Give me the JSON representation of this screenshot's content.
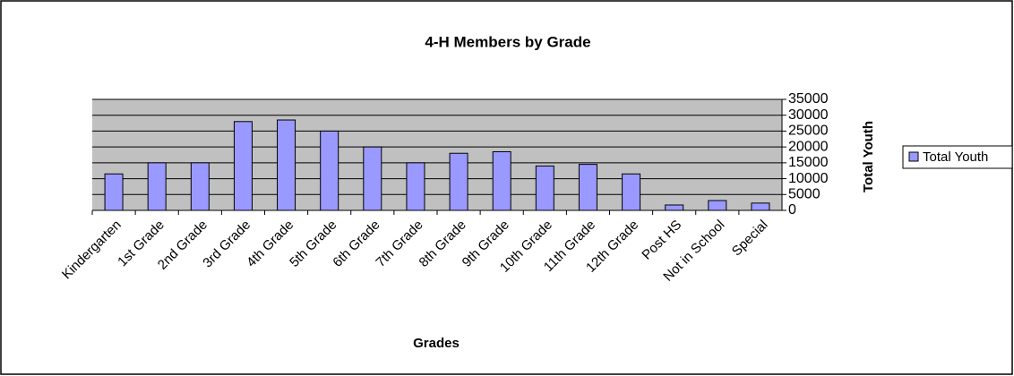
{
  "chart_data": {
    "type": "bar",
    "title": "4-H Members by Grade",
    "x_label": "Grades",
    "y_label": "Total Youth",
    "categories": [
      "Kindergarten",
      "1st Grade",
      "2nd Grade",
      "3rd Grade",
      "4th Grade",
      "5th Grade",
      "6th Grade",
      "7th Grade",
      "8th Grade",
      "9th Grade",
      "10th Grade",
      "11th Grade",
      "12th Grade",
      "Post HS",
      "Not in School",
      "Special"
    ],
    "series": [
      {
        "name": "Total Youth",
        "color": "#9999ff",
        "values": [
          11500,
          15000,
          15000,
          28000,
          28500,
          25000,
          20000,
          15000,
          18000,
          18500,
          14000,
          14500,
          11500,
          1700,
          3100,
          2300
        ]
      }
    ],
    "ylim": [
      0,
      35000
    ],
    "yticks": [
      0,
      5000,
      10000,
      15000,
      20000,
      25000,
      30000,
      35000
    ],
    "grid": true,
    "legend": "right"
  }
}
